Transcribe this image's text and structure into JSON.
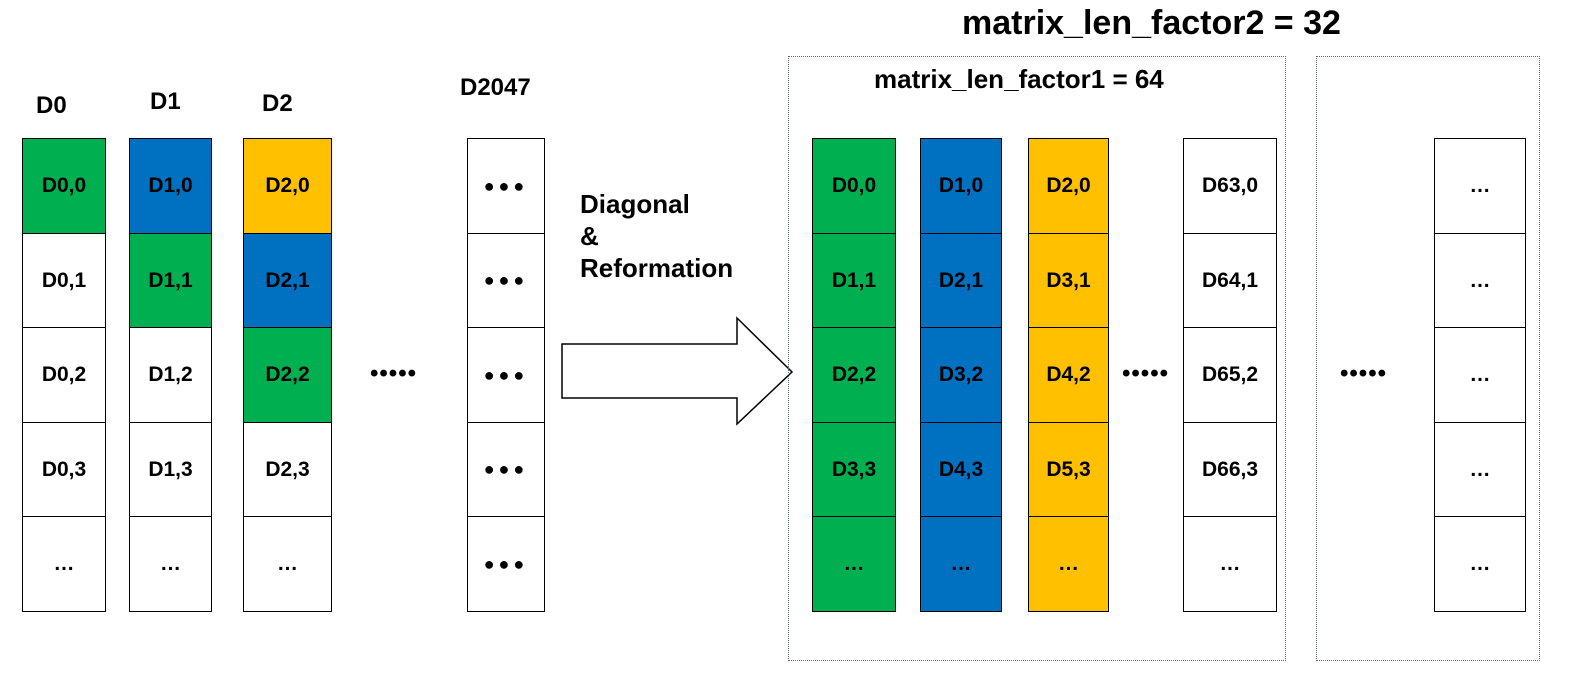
{
  "colors": {
    "green": "#00b050",
    "blue": "#0070c0",
    "yellow": "#ffc000",
    "white": "#ffffff"
  },
  "left": {
    "columns": [
      {
        "header": "D0",
        "cells": [
          {
            "text": "D0,0",
            "color": "green"
          },
          {
            "text": "D0,1",
            "color": "white"
          },
          {
            "text": "D0,2",
            "color": "white"
          },
          {
            "text": "D0,3",
            "color": "white"
          },
          {
            "text": "…",
            "color": "white"
          }
        ]
      },
      {
        "header": "D1",
        "cells": [
          {
            "text": "D1,0",
            "color": "blue"
          },
          {
            "text": "D1,1",
            "color": "green"
          },
          {
            "text": "D1,2",
            "color": "white"
          },
          {
            "text": "D1,3",
            "color": "white"
          },
          {
            "text": "…",
            "color": "white"
          }
        ]
      },
      {
        "header": "D2",
        "cells": [
          {
            "text": "D2,0",
            "color": "yellow"
          },
          {
            "text": "D2,1",
            "color": "blue"
          },
          {
            "text": "D2,2",
            "color": "green"
          },
          {
            "text": "D2,3",
            "color": "white"
          },
          {
            "text": "…",
            "color": "white"
          }
        ]
      },
      {
        "header": "D2047",
        "cells": [
          {
            "text": "●●●",
            "color": "white"
          },
          {
            "text": "●●●",
            "color": "white"
          },
          {
            "text": "●●●",
            "color": "white"
          },
          {
            "text": "●●●",
            "color": "white"
          },
          {
            "text": "●●●",
            "color": "white"
          }
        ]
      }
    ],
    "ellipsis": "•••••"
  },
  "transform": {
    "label_line1": "Diagonal",
    "label_line2": "&",
    "label_line3": "Reformation"
  },
  "right": {
    "outer_label": "matrix_len_factor2 = 32",
    "inner_label": "matrix_len_factor1 = 64",
    "columns": [
      {
        "cells": [
          {
            "text": "D0,0",
            "color": "green"
          },
          {
            "text": "D1,1",
            "color": "green"
          },
          {
            "text": "D2,2",
            "color": "green"
          },
          {
            "text": "D3,3",
            "color": "green"
          },
          {
            "text": "…",
            "color": "green"
          }
        ]
      },
      {
        "cells": [
          {
            "text": "D1,0",
            "color": "blue"
          },
          {
            "text": "D2,1",
            "color": "blue"
          },
          {
            "text": "D3,2",
            "color": "blue"
          },
          {
            "text": "D4,3",
            "color": "blue"
          },
          {
            "text": "…",
            "color": "blue"
          }
        ]
      },
      {
        "cells": [
          {
            "text": "D2,0",
            "color": "yellow"
          },
          {
            "text": "D3,1",
            "color": "yellow"
          },
          {
            "text": "D4,2",
            "color": "yellow"
          },
          {
            "text": "D5,3",
            "color": "yellow"
          },
          {
            "text": "…",
            "color": "yellow"
          }
        ]
      },
      {
        "cells": [
          {
            "text": "D63,0",
            "color": "white"
          },
          {
            "text": "D64,1",
            "color": "white"
          },
          {
            "text": "D65,2",
            "color": "white"
          },
          {
            "text": "D66,3",
            "color": "white"
          },
          {
            "text": "…",
            "color": "white"
          }
        ]
      }
    ],
    "ellipsis_inner": "•••••",
    "ellipsis_between": "•••••",
    "second_group_cells": [
      "…",
      "…",
      "…",
      "…",
      "…"
    ]
  }
}
